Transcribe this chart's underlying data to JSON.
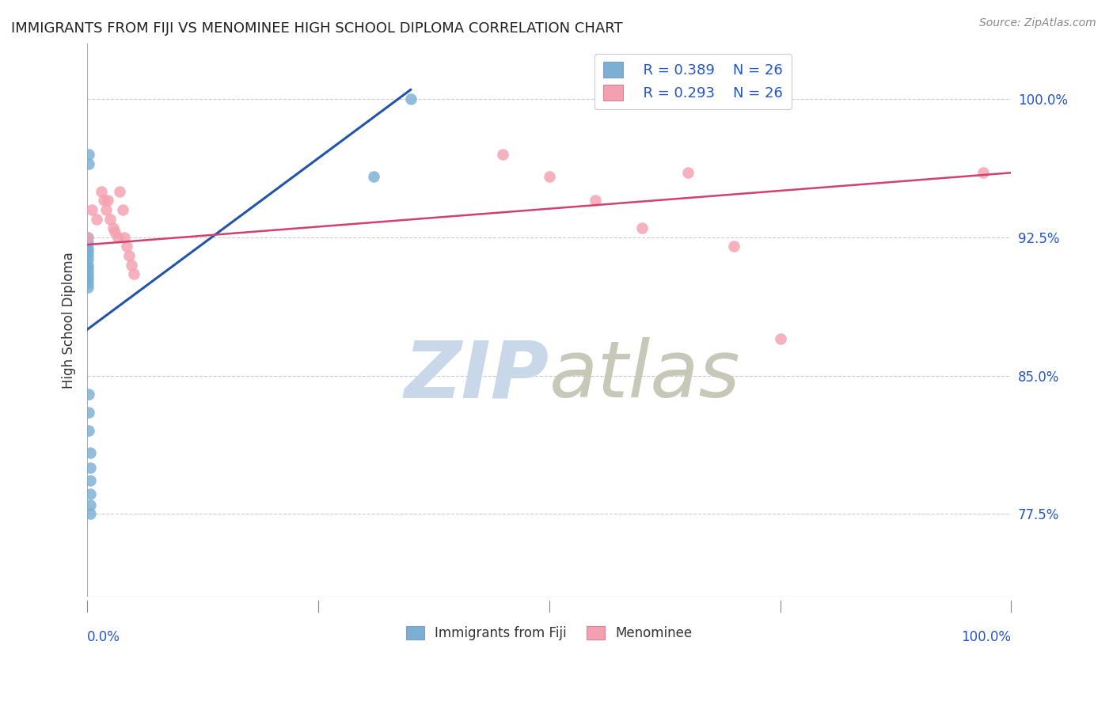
{
  "title": "IMMIGRANTS FROM FIJI VS MENOMINEE HIGH SCHOOL DIPLOMA CORRELATION CHART",
  "source": "Source: ZipAtlas.com",
  "ylabel": "High School Diploma",
  "ylabel_right_ticks": [
    "100.0%",
    "92.5%",
    "85.0%",
    "77.5%"
  ],
  "ylabel_right_vals": [
    1.0,
    0.925,
    0.85,
    0.775
  ],
  "legend_fiji_r": "R = 0.389",
  "legend_fiji_n": "N = 26",
  "legend_menom_r": "R = 0.293",
  "legend_menom_n": "N = 26",
  "fiji_color": "#7bafd4",
  "fiji_color_line": "#2255aa",
  "menominee_color": "#f4a0b0",
  "menominee_color_line": "#d04070",
  "background_color": "#ffffff",
  "grid_color": "#cccccc",
  "watermark_zip": "ZIP",
  "watermark_atlas": "atlas",
  "watermark_color_zip": "#c8d8e8",
  "watermark_color_atlas": "#c8c8b8",
  "fiji_x": [
    0.001,
    0.001,
    0.001,
    0.001,
    0.001,
    0.001,
    0.001,
    0.001,
    0.001,
    0.001,
    0.001,
    0.001,
    0.001,
    0.002,
    0.002,
    0.002,
    0.002,
    0.002,
    0.003,
    0.003,
    0.003,
    0.003,
    0.003,
    0.003,
    0.31,
    0.35
  ],
  "fiji_y": [
    0.925,
    0.922,
    0.919,
    0.917,
    0.915,
    0.913,
    0.91,
    0.908,
    0.906,
    0.904,
    0.902,
    0.9,
    0.898,
    0.97,
    0.965,
    0.84,
    0.83,
    0.82,
    0.808,
    0.8,
    0.793,
    0.786,
    0.78,
    0.775,
    0.958,
    1.0
  ],
  "menominee_x": [
    0.0,
    0.005,
    0.01,
    0.015,
    0.018,
    0.02,
    0.022,
    0.025,
    0.028,
    0.03,
    0.033,
    0.035,
    0.038,
    0.04,
    0.043,
    0.045,
    0.048,
    0.05,
    0.45,
    0.5,
    0.55,
    0.6,
    0.65,
    0.7,
    0.75,
    0.97
  ],
  "menominee_y": [
    0.925,
    0.94,
    0.935,
    0.95,
    0.945,
    0.94,
    0.945,
    0.935,
    0.93,
    0.928,
    0.925,
    0.95,
    0.94,
    0.925,
    0.92,
    0.915,
    0.91,
    0.905,
    0.97,
    0.958,
    0.945,
    0.93,
    0.96,
    0.92,
    0.87,
    0.96
  ],
  "xlim": [
    0.0,
    1.0
  ],
  "ylim": [
    0.73,
    1.03
  ],
  "fiji_trendline_x": [
    0.0,
    0.35
  ],
  "fiji_trendline_y": [
    0.875,
    1.005
  ],
  "menom_trendline_x": [
    0.0,
    1.0
  ],
  "menom_trendline_y": [
    0.921,
    0.96
  ]
}
